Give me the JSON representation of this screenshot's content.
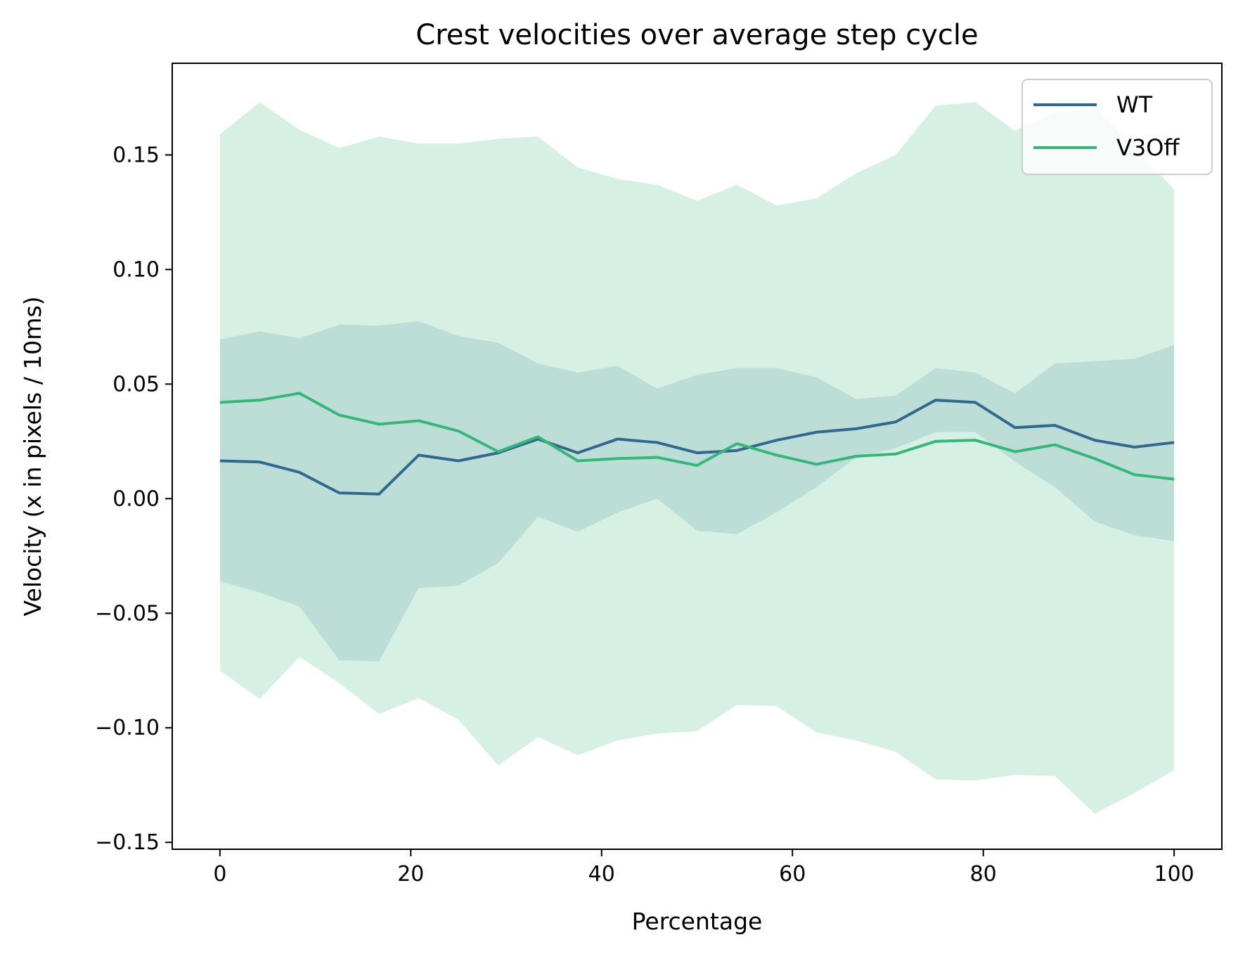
{
  "chart_data": {
    "type": "line",
    "title": "Crest velocities over average step cycle",
    "xlabel": "Percentage",
    "ylabel": "Velocity (x in pixels / 10ms)",
    "xlim": [
      -5,
      105
    ],
    "ylim": [
      -0.153,
      0.19
    ],
    "x_ticks": [
      0,
      20,
      40,
      60,
      80,
      100
    ],
    "x_tick_labels": [
      "0",
      "20",
      "40",
      "60",
      "80",
      "100"
    ],
    "y_ticks": [
      -0.15,
      -0.1,
      -0.05,
      0.0,
      0.05,
      0.1,
      0.15
    ],
    "y_tick_labels": [
      "−0.15",
      "−0.10",
      "−0.05",
      "0.00",
      "0.05",
      "0.10",
      "0.15"
    ],
    "grid": false,
    "legend_position": "top-right",
    "x": [
      0,
      4.17,
      8.33,
      12.5,
      16.67,
      20.83,
      25,
      29.17,
      33.33,
      37.5,
      41.67,
      45.83,
      50,
      54.17,
      58.33,
      62.5,
      66.67,
      70.83,
      75,
      79.17,
      83.33,
      87.5,
      91.67,
      95.83,
      100
    ],
    "series": [
      {
        "name": "WT",
        "color": "#31688e",
        "band_color": "#b4d8d3",
        "values": [
          0.0165,
          0.016,
          0.0115,
          0.0025,
          0.002,
          0.019,
          0.0165,
          0.02,
          0.026,
          0.02,
          0.026,
          0.0245,
          0.02,
          0.021,
          0.0255,
          0.029,
          0.0305,
          0.0335,
          0.043,
          0.042,
          0.031,
          0.032,
          0.0255,
          0.0225,
          0.0245
        ],
        "upper": [
          0.0695,
          0.073,
          0.07,
          0.076,
          0.0755,
          0.0775,
          0.071,
          0.068,
          0.059,
          0.055,
          0.058,
          0.048,
          0.054,
          0.057,
          0.057,
          0.053,
          0.0435,
          0.045,
          0.057,
          0.055,
          0.046,
          0.059,
          0.06,
          0.061,
          0.067
        ],
        "lower": [
          -0.036,
          -0.041,
          -0.047,
          -0.0705,
          -0.071,
          -0.039,
          -0.038,
          -0.028,
          -0.008,
          -0.0145,
          -0.006,
          0.0,
          -0.014,
          -0.0155,
          -0.006,
          0.005,
          0.018,
          0.022,
          0.029,
          0.029,
          0.016,
          0.005,
          -0.01,
          -0.016,
          -0.0185
        ]
      },
      {
        "name": "V3Off",
        "color": "#35b779",
        "band_color": "#d7f0e4",
        "values": [
          0.042,
          0.043,
          0.046,
          0.0365,
          0.0325,
          0.034,
          0.0295,
          0.0205,
          0.027,
          0.0165,
          0.0175,
          0.018,
          0.0145,
          0.024,
          0.019,
          0.015,
          0.0185,
          0.0195,
          0.025,
          0.0255,
          0.0205,
          0.0235,
          0.0175,
          0.0105,
          0.0085
        ],
        "upper": [
          0.159,
          0.173,
          0.161,
          0.153,
          0.158,
          0.155,
          0.155,
          0.157,
          0.158,
          0.1445,
          0.1395,
          0.137,
          0.13,
          0.137,
          0.128,
          0.131,
          0.142,
          0.15,
          0.1715,
          0.173,
          0.1605,
          0.1685,
          0.171,
          0.153,
          0.135
        ],
        "lower": [
          -0.075,
          -0.0875,
          -0.069,
          -0.0805,
          -0.094,
          -0.087,
          -0.0965,
          -0.1165,
          -0.104,
          -0.112,
          -0.1055,
          -0.1025,
          -0.1015,
          -0.09,
          -0.0905,
          -0.102,
          -0.1055,
          -0.1105,
          -0.1225,
          -0.123,
          -0.1205,
          -0.121,
          -0.1375,
          -0.1285,
          -0.1185
        ]
      }
    ]
  }
}
